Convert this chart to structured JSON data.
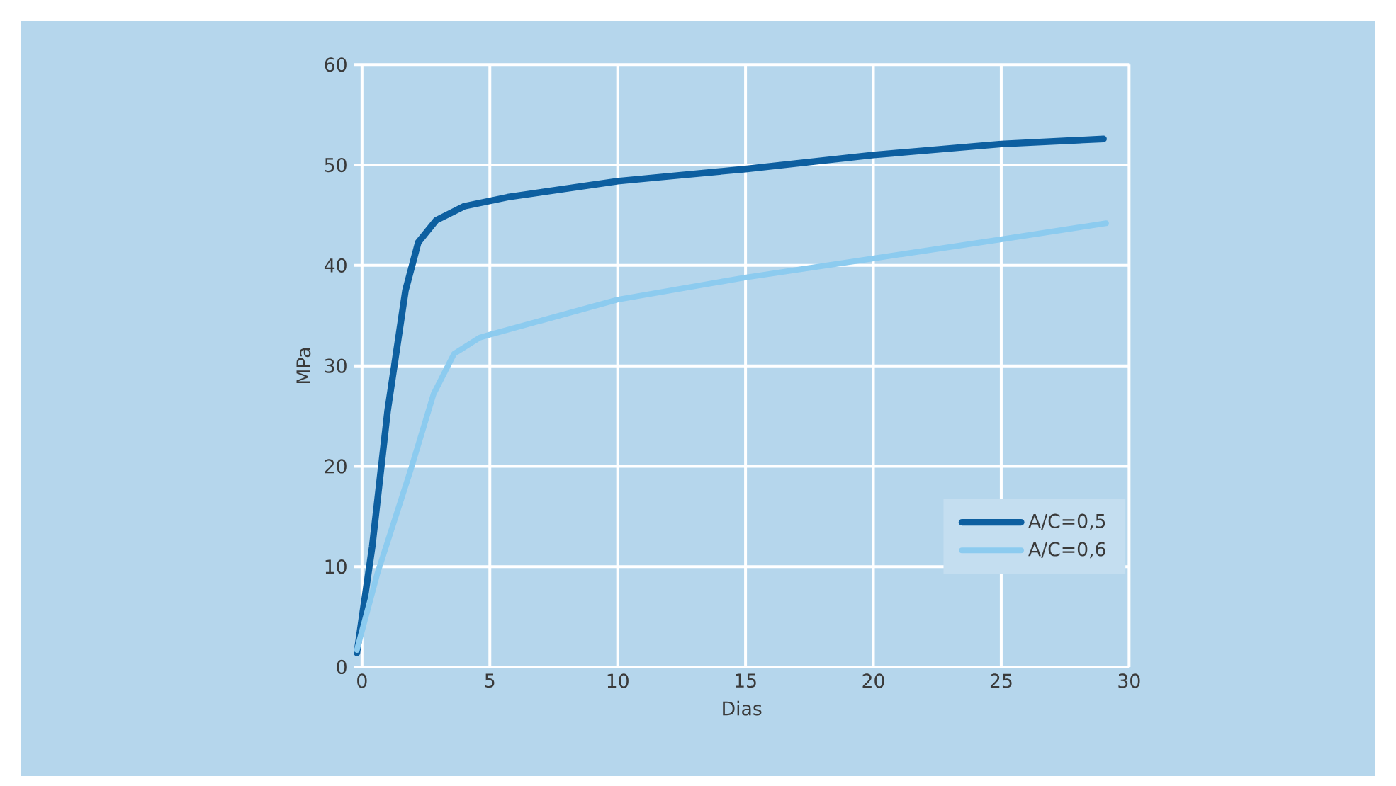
{
  "chart_data": {
    "type": "line",
    "xlabel": "Dias",
    "ylabel": "MPa",
    "xlim": [
      -0.3,
      30
    ],
    "ylim": [
      0,
      60
    ],
    "xticks": [
      0,
      5,
      10,
      15,
      20,
      25,
      30
    ],
    "yticks": [
      0,
      10,
      20,
      30,
      40,
      50,
      60
    ],
    "grid": true,
    "legend": "bottom right",
    "series": [
      {
        "name": "A/C=0,5",
        "color": "#0d5fa0",
        "x": [
          -0.2,
          0.4,
          1.0,
          1.7,
          2.2,
          2.9,
          4.0,
          5.7,
          10,
          15,
          20,
          25,
          29
        ],
        "values": [
          1.4,
          12,
          25.5,
          37.5,
          42.3,
          44.5,
          45.9,
          46.8,
          48.4,
          49.6,
          51,
          52.1,
          52.6
        ]
      },
      {
        "name": "A/C=0,6",
        "color": "#8ccbef",
        "x": [
          -0.2,
          0.6,
          1.9,
          2.8,
          3.6,
          4.6,
          5,
          10,
          15,
          20,
          25,
          29.1
        ],
        "values": [
          1.7,
          9.3,
          19.6,
          27.2,
          31.2,
          32.8,
          33.1,
          36.6,
          38.8,
          40.7,
          42.6,
          44.2
        ]
      }
    ]
  }
}
